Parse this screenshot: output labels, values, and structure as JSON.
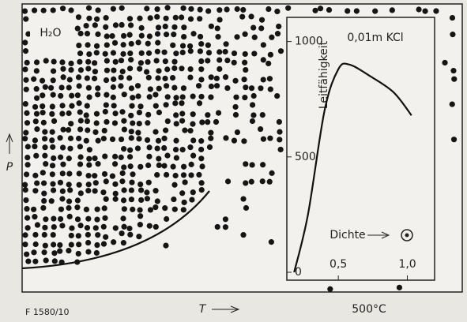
{
  "chart_data": {
    "type": "figure",
    "label": "H₂O",
    "y_label": "P",
    "x_label": "T",
    "x_mark": "500°C",
    "figure_id": "F 1580/10",
    "inset": {
      "type": "line",
      "title": "0,01m KCl",
      "y_label": "Leitfähigkeit",
      "x_label": "Dichte",
      "x": [
        0.18,
        0.28,
        0.4,
        0.5,
        0.58,
        0.73,
        0.9,
        1.03
      ],
      "values": [
        0,
        250,
        700,
        880,
        900,
        850,
        780,
        680
      ],
      "xlim": [
        0.15,
        1.18
      ],
      "ylim": [
        0,
        1050
      ],
      "xticks": [
        {
          "value": 0.5,
          "label": "0,5"
        },
        {
          "value": 1.0,
          "label": "1,0"
        }
      ],
      "yticks": [
        0,
        500,
        1000
      ],
      "color": "#111"
    }
  }
}
